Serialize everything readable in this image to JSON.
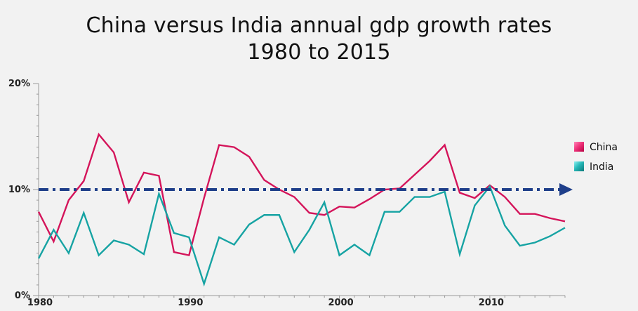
{
  "chart_data": {
    "type": "line",
    "title_line1": "China versus India annual gdp growth rates",
    "title_line2": "1980 to 2015",
    "x": [
      1980,
      1981,
      1982,
      1983,
      1984,
      1985,
      1986,
      1987,
      1988,
      1989,
      1990,
      1991,
      1992,
      1993,
      1994,
      1995,
      1996,
      1997,
      1998,
      1999,
      2000,
      2001,
      2002,
      2003,
      2004,
      2005,
      2006,
      2007,
      2008,
      2009,
      2010,
      2011,
      2012,
      2013,
      2014,
      2015
    ],
    "series": [
      {
        "name": "China",
        "color": "#d4145a",
        "values": [
          7.9,
          5.1,
          9.0,
          10.8,
          15.2,
          13.5,
          8.8,
          11.6,
          11.3,
          4.1,
          3.8,
          9.2,
          14.2,
          14.0,
          13.1,
          10.9,
          10.0,
          9.3,
          7.8,
          7.6,
          8.4,
          8.3,
          9.1,
          10.0,
          10.1,
          11.4,
          12.7,
          14.2,
          9.7,
          9.2,
          10.4,
          9.3,
          7.7,
          7.7,
          7.3,
          7.0
        ]
      },
      {
        "name": "India",
        "color": "#16a3a3",
        "values": [
          3.5,
          6.2,
          4.0,
          7.8,
          3.8,
          5.2,
          4.8,
          3.9,
          9.6,
          5.9,
          5.5,
          1.1,
          5.5,
          4.8,
          6.7,
          7.6,
          7.6,
          4.1,
          6.2,
          8.8,
          3.8,
          4.8,
          3.8,
          7.9,
          7.9,
          9.3,
          9.3,
          9.8,
          3.9,
          8.5,
          10.3,
          6.6,
          4.7,
          5.0,
          5.6,
          6.4
        ]
      }
    ],
    "reference_line": {
      "value": 10,
      "style": "dash-dot",
      "color": "#1f3f8a",
      "arrow": true
    },
    "ylim": [
      0,
      20
    ],
    "xlim": [
      1980,
      2015
    ],
    "y_ticks": [
      {
        "value": 0,
        "label": "0%"
      },
      {
        "value": 10,
        "label": "10%"
      },
      {
        "value": 20,
        "label": "20%"
      }
    ],
    "x_ticks": [
      {
        "value": 1980,
        "label": "1980"
      },
      {
        "value": 1990,
        "label": "1990"
      },
      {
        "value": 2000,
        "label": "2000"
      },
      {
        "value": 2010,
        "label": "2010"
      }
    ],
    "legend_position": "right",
    "grid": false
  }
}
